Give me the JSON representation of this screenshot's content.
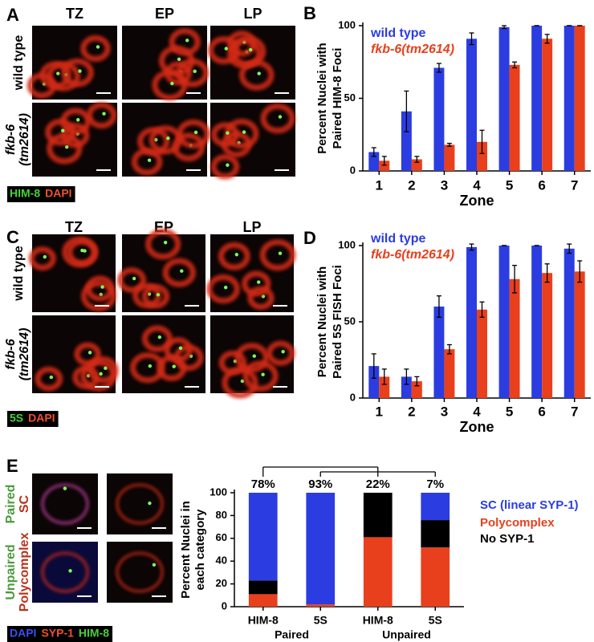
{
  "image_panels": [
    {
      "letter": "A",
      "columns": [
        "TZ",
        "EP",
        "LP"
      ],
      "rows": [
        [
          "wild type"
        ],
        [
          "fkb-6",
          "(tm2614)"
        ]
      ],
      "stain": [
        "HIM-8",
        "DAPI"
      ]
    },
    {
      "letter": "C",
      "columns": [
        "TZ",
        "EP",
        "LP"
      ],
      "rows": [
        [
          "wild type"
        ],
        [
          "fkb-6",
          "(tm2614)"
        ]
      ],
      "stain": [
        "5S",
        "DAPI"
      ]
    },
    {
      "letter": "E",
      "columns": [],
      "rows": [
        [
          "Paired",
          "SC"
        ],
        [
          "Unpaired",
          "Polycomplex"
        ]
      ],
      "stain": [
        "DAPI",
        "SYP-1",
        "HIM-8"
      ]
    }
  ],
  "chart_data": [
    {
      "type": "bar",
      "letter": "B",
      "ylabel": [
        "Percent Nuclei with",
        "Paired HIM-8 Foci"
      ],
      "xlabel": "Zone",
      "categories": [
        "1",
        "2",
        "3",
        "4",
        "5",
        "6",
        "7"
      ],
      "series": [
        {
          "name": "wild type",
          "color": "#2b3de0",
          "values": [
            13,
            41,
            71,
            91,
            99,
            100,
            100
          ],
          "errors": [
            3,
            14,
            3,
            4,
            1,
            0,
            0
          ]
        },
        {
          "name": "fkb-6(tm2614)",
          "color": "#e8401c",
          "values": [
            7,
            8,
            18,
            20,
            73,
            91,
            100
          ],
          "errors": [
            3,
            2,
            1,
            8,
            2,
            3,
            0
          ]
        }
      ],
      "ylim": [
        0,
        100
      ],
      "yticks": [
        0,
        50,
        100
      ],
      "legend": "upper left"
    },
    {
      "type": "bar",
      "letter": "D",
      "ylabel": [
        "Percent Nuclei with",
        "Paired 5S FISH Foci"
      ],
      "xlabel": "Zone",
      "categories": [
        "1",
        "2",
        "3",
        "4",
        "5",
        "6",
        "7"
      ],
      "series": [
        {
          "name": "wild type",
          "color": "#2b3de0",
          "values": [
            21,
            14,
            60,
            99,
            100,
            100,
            98
          ],
          "errors": [
            8,
            5,
            7,
            2,
            0,
            0,
            3
          ]
        },
        {
          "name": "fkb-6(tm2614)",
          "color": "#e8401c",
          "values": [
            14,
            11,
            32,
            58,
            78,
            82,
            83
          ],
          "errors": [
            5,
            3,
            3,
            5,
            9,
            6,
            7
          ]
        }
      ],
      "ylim": [
        0,
        100
      ],
      "yticks": [
        0,
        50,
        100
      ],
      "legend": "upper left"
    },
    {
      "type": "stacked_bar",
      "ylabel": [
        "Percent Nuclei in",
        "each category"
      ],
      "categories": [
        "HIM-8",
        "5S",
        "HIM-8",
        "5S"
      ],
      "groups": [
        "Paired",
        "Unpaired"
      ],
      "annotations": [
        "78%",
        "93%",
        "22%",
        "7%"
      ],
      "series": [
        {
          "name": "SC (linear SYP-1)",
          "color": "#2b3de0",
          "values": [
            77,
            98,
            0,
            24
          ]
        },
        {
          "name": "Polycomplex",
          "color": "#e8401c",
          "values": [
            11,
            2,
            61,
            52
          ]
        },
        {
          "name": "No SYP-1",
          "color": "#000000",
          "values": [
            12,
            0,
            39,
            24
          ]
        }
      ],
      "ylim": [
        0,
        100
      ],
      "yticks": [
        0,
        20,
        40,
        60,
        80,
        100
      ],
      "legend": "right"
    }
  ]
}
